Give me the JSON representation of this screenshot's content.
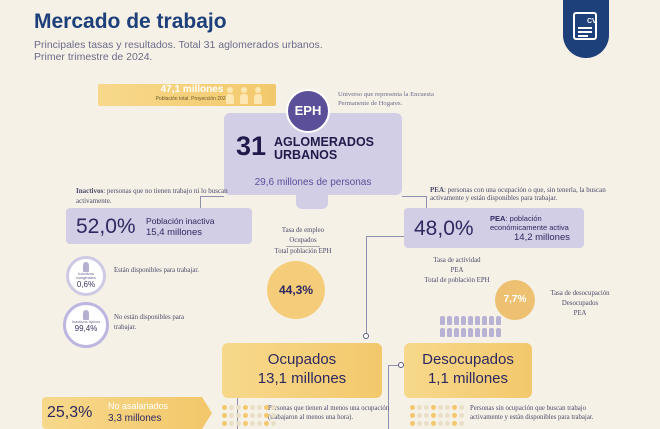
{
  "header": {
    "title": "Mercado de trabajo",
    "subtitle": "Principales tasas y resultados. Total 31 aglomerados urbanos. Primer trimestre de 2024.",
    "badge_icon": "cv-document-icon",
    "badge_text": "CV"
  },
  "population": {
    "value": "47,1 millones",
    "label": "Población total. Proyección 2024"
  },
  "eph": {
    "circle_label": "EPH",
    "note": "Universo que representa la Encuesta Permanente de Hogares."
  },
  "universe": {
    "number": "31",
    "label_line1": "AGLOMERADOS",
    "label_line2": "URBANOS",
    "people": "29,6 millones de personas"
  },
  "inactive": {
    "note_bold": "Inactivos",
    "note_rest": ": personas que no tienen trabajo ni lo buscan activamente.",
    "pct": "52,0%",
    "label": "Población inactiva",
    "value": "15,4 millones",
    "marginal": {
      "tag": "Inactivos marginales",
      "pct": "0,6%",
      "text": "Están disponibles para trabajar."
    },
    "typical": {
      "tag": "Inactivos típicos",
      "pct": "99,4%",
      "text": "No están disponibles para trabajar."
    }
  },
  "employment_rate": {
    "title": "Tasa de empleo",
    "numerator": "Ocupados",
    "denominator": "Total población EPH",
    "value": "44,3%"
  },
  "pea": {
    "note_bold": "PEA",
    "note_rest": ": personas con una ocupación o que, sin tenerla, la buscan activamente y están disponibles para trabajar.",
    "pct": "48,0%",
    "label_bold": "PEA",
    "label_rest": ": población económicamente activa",
    "value": "14,2 millones"
  },
  "activity_rate": {
    "title": "Tasa de actividad",
    "numerator": "PEA",
    "denominator": "Total de población EPH"
  },
  "unemployment_rate": {
    "title": "Tasa de desocupación",
    "numerator": "Desocupados",
    "denominator": "PEA",
    "value": "7,7%"
  },
  "employed": {
    "label": "Ocupados",
    "value": "13,1 millones",
    "note": "Personas que tienen al menos una ocupación (trabajaron al menos una hora)."
  },
  "unemployed": {
    "label": "Desocupados",
    "value": "1,1 millones",
    "note": "Personas sin ocupación que buscan trabajo activamente y están disponibles para trabajar."
  },
  "non_salaried": {
    "pct": "25,3%",
    "label": "No asalariados",
    "value": "3,3 millones"
  },
  "colors": {
    "title": "#1d3f7a",
    "lavender": "#d2cee5",
    "gold": "#f3c86c",
    "purple": "#5b4f9a"
  }
}
